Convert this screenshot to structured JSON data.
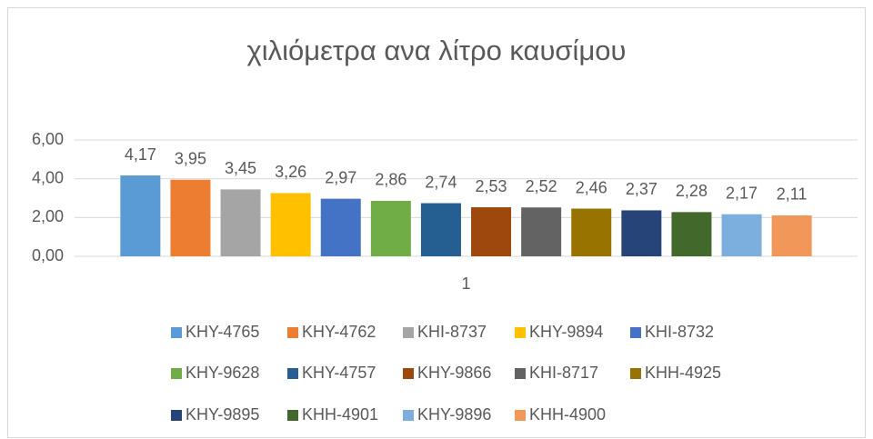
{
  "chart_data": {
    "type": "bar",
    "title": "χιλιόμετρα ανα λίτρο καυσίμου",
    "categories": [
      "1"
    ],
    "series": [
      {
        "name": "KHY-4765",
        "color": "#5b9bd5",
        "values": [
          4.17
        ],
        "value_labels": [
          "4,17"
        ]
      },
      {
        "name": "KHY-4762",
        "color": "#ed7d31",
        "values": [
          3.95
        ],
        "value_labels": [
          "3,95"
        ]
      },
      {
        "name": "KHI-8737",
        "color": "#a5a5a5",
        "values": [
          3.45
        ],
        "value_labels": [
          "3,45"
        ]
      },
      {
        "name": "KHY-9894",
        "color": "#ffc000",
        "values": [
          3.26
        ],
        "value_labels": [
          "3,26"
        ]
      },
      {
        "name": "KHI-8732",
        "color": "#4472c4",
        "values": [
          2.97
        ],
        "value_labels": [
          "2,97"
        ]
      },
      {
        "name": "KHY-9628",
        "color": "#70ad47",
        "values": [
          2.86
        ],
        "value_labels": [
          "2,86"
        ]
      },
      {
        "name": "KHY-4757",
        "color": "#255e91",
        "values": [
          2.74
        ],
        "value_labels": [
          "2,74"
        ]
      },
      {
        "name": "KHY-9866",
        "color": "#9e480e",
        "values": [
          2.53
        ],
        "value_labels": [
          "2,53"
        ]
      },
      {
        "name": "KHI-8717",
        "color": "#636363",
        "values": [
          2.52
        ],
        "value_labels": [
          "2,52"
        ]
      },
      {
        "name": "KHH-4925",
        "color": "#997300",
        "values": [
          2.46
        ],
        "value_labels": [
          "2,46"
        ]
      },
      {
        "name": "KHY-9895",
        "color": "#264478",
        "values": [
          2.37
        ],
        "value_labels": [
          "2,37"
        ]
      },
      {
        "name": "KHH-4901",
        "color": "#43682b",
        "values": [
          2.28
        ],
        "value_labels": [
          "2,28"
        ]
      },
      {
        "name": "KHY-9896",
        "color": "#7cafdd",
        "values": [
          2.17
        ],
        "value_labels": [
          "2,17"
        ]
      },
      {
        "name": "KHH-4900",
        "color": "#f1975a",
        "values": [
          2.11
        ],
        "value_labels": [
          "2,11"
        ]
      }
    ],
    "ylim": [
      0,
      6
    ],
    "yticks": [
      {
        "value": 0,
        "label": "0,00"
      },
      {
        "value": 2,
        "label": "2,00"
      },
      {
        "value": 4,
        "label": "4,00"
      },
      {
        "value": 6,
        "label": "6,00"
      }
    ],
    "grid": true,
    "legend": "bottom"
  }
}
